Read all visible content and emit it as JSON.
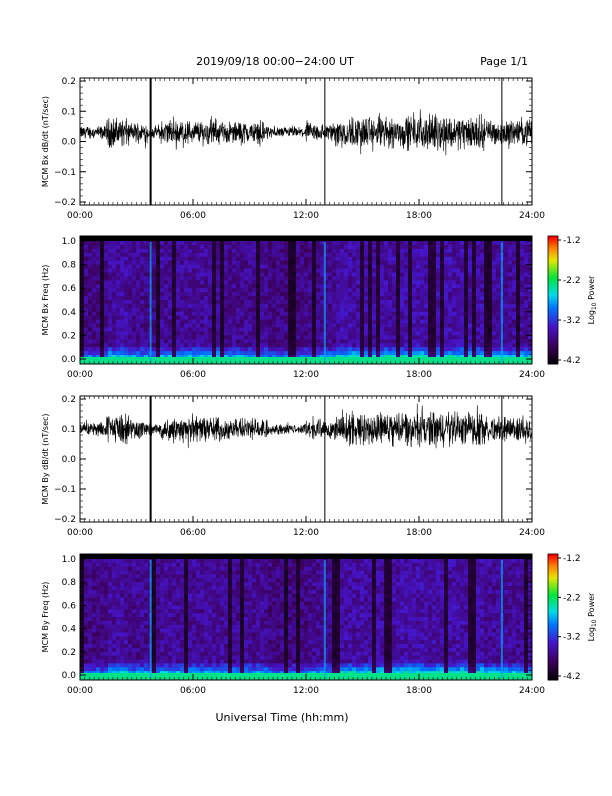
{
  "header": {
    "title": "2019/09/18  00:00−24:00 UT",
    "page_label": "Page 1/1"
  },
  "xlabel": "Universal Time (hh:mm)",
  "colorbar": {
    "label": "Log10 Power",
    "label_main": "Log",
    "label_sub": "10",
    "label_tail": " Power",
    "ticks": [
      "-1.2",
      "-2.2",
      "-3.2",
      "-4.2"
    ],
    "range": [
      -4.2,
      -1.2
    ]
  },
  "chart_data": [
    {
      "type": "line",
      "ylabel": "MCM Bx dB/dt (nT/sec)",
      "x_ticks": [
        "00:00",
        "06:00",
        "12:00",
        "18:00",
        "24:00"
      ],
      "x_range_hours": [
        0,
        24
      ],
      "y_ticks": [
        "0.2",
        "0.1",
        "0.0",
        "−0.1",
        "−0.2"
      ],
      "ylim": [
        -0.2,
        0.2
      ],
      "baseline": 0.03,
      "spikes_hours": [
        3.75,
        13.0,
        22.4
      ]
    },
    {
      "type": "heatmap",
      "ylabel": "MCM Bx Freq (Hz)",
      "x_ticks": [
        "00:00",
        "06:00",
        "12:00",
        "18:00",
        "24:00"
      ],
      "x_range_hours": [
        0,
        24
      ],
      "y_ticks": [
        "1.0",
        "0.8",
        "0.6",
        "0.4",
        "0.2",
        "0.0"
      ],
      "ylim": [
        0,
        1.0
      ]
    },
    {
      "type": "line",
      "ylabel": "MCM By dB/dt (nT/sec)",
      "x_ticks": [
        "00:00",
        "06:00",
        "12:00",
        "18:00",
        "24:00"
      ],
      "x_range_hours": [
        0,
        24
      ],
      "y_ticks": [
        "0.2",
        "0.1",
        "0.0",
        "−0.1",
        "−0.2"
      ],
      "ylim": [
        -0.2,
        0.2
      ],
      "baseline": 0.1,
      "spikes_hours": [
        3.75,
        13.0,
        22.4
      ]
    },
    {
      "type": "heatmap",
      "ylabel": "MCM By Freq (Hz)",
      "x_ticks": [
        "00:00",
        "06:00",
        "12:00",
        "18:00",
        "24:00"
      ],
      "x_range_hours": [
        0,
        24
      ],
      "y_ticks": [
        "1.0",
        "0.8",
        "0.6",
        "0.4",
        "0.2",
        "0.0"
      ],
      "ylim": [
        0,
        1.0
      ]
    }
  ]
}
